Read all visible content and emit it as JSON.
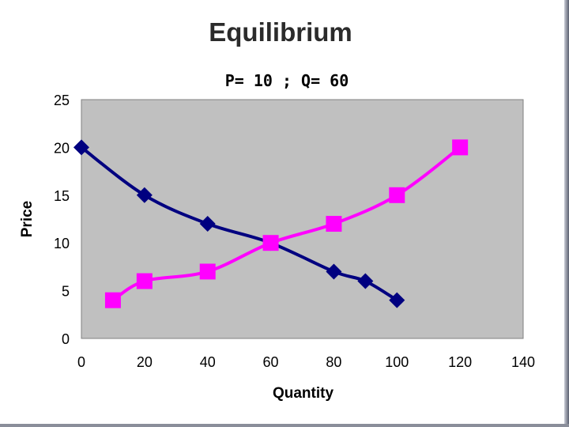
{
  "slide": {
    "title": "Equilibrium",
    "subtitle": "P= 10 ; Q= 60"
  },
  "chart_data": {
    "type": "line",
    "title": "",
    "xlabel": "Quantity",
    "ylabel": "Price",
    "xlim": [
      0,
      140
    ],
    "ylim": [
      0,
      25
    ],
    "x_ticks": [
      0,
      20,
      40,
      60,
      80,
      100,
      120,
      140
    ],
    "y_ticks": [
      0,
      5,
      10,
      15,
      20,
      25
    ],
    "grid": false,
    "legend": "none",
    "plot_background": "#c0c0c0",
    "series": [
      {
        "color": "#000080",
        "marker": "diamond",
        "points": [
          [
            0,
            20
          ],
          [
            20,
            15
          ],
          [
            40,
            12
          ],
          [
            60,
            10
          ],
          [
            80,
            7
          ],
          [
            90,
            6
          ],
          [
            100,
            4
          ]
        ]
      },
      {
        "color": "#ff00ff",
        "marker": "square",
        "points": [
          [
            10,
            4
          ],
          [
            20,
            6
          ],
          [
            40,
            7
          ],
          [
            60,
            10
          ],
          [
            80,
            12
          ],
          [
            100,
            15
          ],
          [
            120,
            20
          ]
        ]
      }
    ]
  }
}
